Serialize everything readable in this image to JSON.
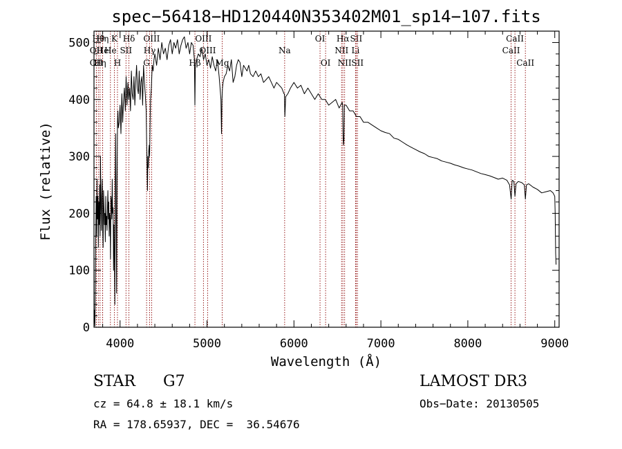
{
  "chart_data": {
    "type": "line",
    "title": "spec−56418−HD120440N353402M01_sp14−107.fits",
    "xlabel": "Wavelength (Å)",
    "ylabel": "Flux (relative)",
    "xlim": [
      3700,
      9050
    ],
    "ylim": [
      0,
      520
    ],
    "xticks": [
      4000,
      5000,
      6000,
      7000,
      8000,
      9000
    ],
    "yticks": [
      0,
      100,
      200,
      300,
      400,
      500
    ],
    "series": [
      {
        "name": "spectrum",
        "x": [
          3700,
          3705,
          3710,
          3715,
          3720,
          3725,
          3730,
          3735,
          3740,
          3745,
          3750,
          3755,
          3760,
          3765,
          3770,
          3775,
          3780,
          3785,
          3790,
          3795,
          3800,
          3805,
          3810,
          3815,
          3820,
          3825,
          3830,
          3835,
          3840,
          3845,
          3850,
          3855,
          3860,
          3865,
          3870,
          3875,
          3880,
          3885,
          3890,
          3895,
          3900,
          3905,
          3910,
          3915,
          3920,
          3925,
          3930,
          3935,
          3940,
          3945,
          3950,
          3955,
          3960,
          3965,
          3970,
          3975,
          3980,
          3990,
          4000,
          4010,
          4020,
          4030,
          4040,
          4050,
          4060,
          4070,
          4080,
          4090,
          4100,
          4110,
          4120,
          4130,
          4140,
          4150,
          4160,
          4170,
          4180,
          4190,
          4200,
          4210,
          4220,
          4230,
          4240,
          4250,
          4260,
          4270,
          4280,
          4290,
          4300,
          4305,
          4310,
          4315,
          4320,
          4325,
          4330,
          4335,
          4340,
          4345,
          4350,
          4360,
          4370,
          4380,
          4390,
          4400,
          4420,
          4440,
          4460,
          4480,
          4500,
          4520,
          4540,
          4560,
          4580,
          4600,
          4620,
          4640,
          4660,
          4680,
          4700,
          4720,
          4740,
          4760,
          4780,
          4800,
          4820,
          4840,
          4855,
          4861,
          4866,
          4880,
          4900,
          4920,
          4940,
          4960,
          4980,
          5000,
          5020,
          5040,
          5060,
          5080,
          5100,
          5120,
          5140,
          5160,
          5167,
          5172,
          5178,
          5185,
          5200,
          5220,
          5240,
          5260,
          5280,
          5300,
          5320,
          5340,
          5360,
          5380,
          5400,
          5420,
          5440,
          5460,
          5480,
          5500,
          5530,
          5560,
          5590,
          5620,
          5650,
          5680,
          5710,
          5740,
          5770,
          5800,
          5830,
          5860,
          5885,
          5890,
          5896,
          5905,
          5930,
          5960,
          6000,
          6040,
          6080,
          6120,
          6160,
          6200,
          6240,
          6280,
          6320,
          6360,
          6400,
          6440,
          6480,
          6520,
          6555,
          6560,
          6565,
          6570,
          6575,
          6580,
          6600,
          6640,
          6680,
          6720,
          6760,
          6800,
          6850,
          6900,
          6950,
          7000,
          7050,
          7100,
          7150,
          7200,
          7250,
          7300,
          7350,
          7400,
          7450,
          7500,
          7550,
          7600,
          7650,
          7700,
          7750,
          7800,
          7850,
          7900,
          7950,
          8000,
          8050,
          8100,
          8150,
          8200,
          8250,
          8300,
          8350,
          8400,
          8450,
          8480,
          8498,
          8510,
          8530,
          8542,
          8555,
          8580,
          8620,
          8650,
          8662,
          8675,
          8700,
          8750,
          8800,
          8850,
          8900,
          8950,
          8980,
          9000,
          9005,
          9010,
          9015
        ],
        "values": [
          5,
          30,
          2,
          60,
          150,
          230,
          160,
          260,
          190,
          230,
          140,
          220,
          180,
          250,
          160,
          300,
          210,
          170,
          230,
          260,
          170,
          140,
          240,
          210,
          180,
          200,
          150,
          230,
          180,
          195,
          170,
          210,
          240,
          190,
          220,
          160,
          200,
          190,
          120,
          230,
          220,
          190,
          260,
          200,
          210,
          100,
          180,
          120,
          40,
          260,
          340,
          200,
          60,
          240,
          360,
          380,
          350,
          360,
          390,
          340,
          410,
          360,
          400,
          420,
          380,
          440,
          390,
          430,
          400,
          420,
          380,
          450,
          410,
          400,
          440,
          390,
          430,
          460,
          420,
          410,
          450,
          400,
          430,
          440,
          390,
          460,
          430,
          410,
          380,
          330,
          290,
          240,
          300,
          280,
          310,
          320,
          300,
          350,
          400,
          420,
          460,
          450,
          470,
          480,
          460,
          490,
          470,
          500,
          480,
          490,
          470,
          495,
          505,
          480,
          500,
          490,
          505,
          480,
          495,
          505,
          510,
          490,
          500,
          480,
          500,
          495,
          470,
          390,
          460,
          470,
          480,
          475,
          490,
          470,
          480,
          460,
          470,
          455,
          475,
          460,
          450,
          470,
          440,
          400,
          340,
          400,
          420,
          430,
          440,
          445,
          460,
          450,
          470,
          430,
          440,
          460,
          470,
          465,
          440,
          460,
          455,
          450,
          460,
          445,
          440,
          450,
          440,
          445,
          430,
          435,
          440,
          430,
          420,
          430,
          425,
          420,
          410,
          410,
          370,
          405,
          410,
          420,
          430,
          420,
          425,
          410,
          420,
          410,
          400,
          410,
          400,
          400,
          390,
          395,
          400,
          385,
          395,
          390,
          340,
          320,
          330,
          390,
          390,
          380,
          380,
          370,
          370,
          360,
          360,
          355,
          350,
          345,
          342,
          340,
          332,
          330,
          325,
          320,
          316,
          312,
          308,
          305,
          300,
          298,
          296,
          292,
          290,
          288,
          285,
          283,
          280,
          278,
          276,
          273,
          270,
          268,
          266,
          263,
          260,
          262,
          258,
          250,
          225,
          258,
          256,
          230,
          252,
          256,
          254,
          250,
          225,
          250,
          252,
          246,
          242,
          236,
          238,
          240,
          236,
          230,
          200,
          130,
          110
        ]
      }
    ],
    "line_annotations": [
      {
        "wavelength": 3750,
        "label": "Hθ",
        "row": 1
      },
      {
        "wavelength": 3799,
        "label": "Hη",
        "row": 1
      },
      {
        "wavelength": 3727,
        "label": "OII",
        "row": 2
      },
      {
        "wavelength": 3800,
        "label": "He",
        "row": 2
      },
      {
        "wavelength": 3727,
        "label": "OII",
        "row": 3
      },
      {
        "wavelength": 3770,
        "label": "Hη",
        "row": 3
      },
      {
        "wavelength": 3934,
        "label": "K",
        "row": 1
      },
      {
        "wavelength": 3889,
        "label": "He",
        "row": 2
      },
      {
        "wavelength": 3970,
        "label": "H",
        "row": 3
      },
      {
        "wavelength": 4068,
        "label": "SII",
        "row": 2
      },
      {
        "wavelength": 4102,
        "label": "Hδ",
        "row": 1
      },
      {
        "wavelength": 4363,
        "label": "OIII",
        "row": 1
      },
      {
        "wavelength": 4340,
        "label": "Hγ",
        "row": 2
      },
      {
        "wavelength": 4305,
        "label": "G",
        "row": 3
      },
      {
        "wavelength": 4861,
        "label": "Hβ",
        "row": 3
      },
      {
        "wavelength": 4959,
        "label": "OIII",
        "row": 1
      },
      {
        "wavelength": 5007,
        "label": "OIII",
        "row": 2
      },
      {
        "wavelength": 5175,
        "label": "Mg",
        "row": 3
      },
      {
        "wavelength": 5893,
        "label": "Na",
        "row": 2
      },
      {
        "wavelength": 6300,
        "label": "OI",
        "row": 1
      },
      {
        "wavelength": 6364,
        "label": "OI",
        "row": 3
      },
      {
        "wavelength": 6548,
        "label": "NII",
        "row": 2
      },
      {
        "wavelength": 6563,
        "label": "Hα",
        "row": 1
      },
      {
        "wavelength": 6583,
        "label": "NII",
        "row": 3
      },
      {
        "wavelength": 6708,
        "label": "Li",
        "row": 2
      },
      {
        "wavelength": 6716,
        "label": "SII",
        "row": 1
      },
      {
        "wavelength": 6731,
        "label": "SII",
        "row": 3
      },
      {
        "wavelength": 8498,
        "label": "CaII",
        "row": 2
      },
      {
        "wavelength": 8542,
        "label": "CaII",
        "row": 1
      },
      {
        "wavelength": 8662,
        "label": "CaII",
        "row": 3
      }
    ],
    "annotation_line_color": "#8b0000"
  },
  "info": {
    "object_class": "STAR",
    "subclass": "G7",
    "survey": "LAMOST DR3",
    "redshift": "cz = 64.8 ± 18.1 km/s",
    "obs_date": "Obs−Date: 20130505",
    "coords": "RA = 178.65937, DEC =  36.54676"
  }
}
